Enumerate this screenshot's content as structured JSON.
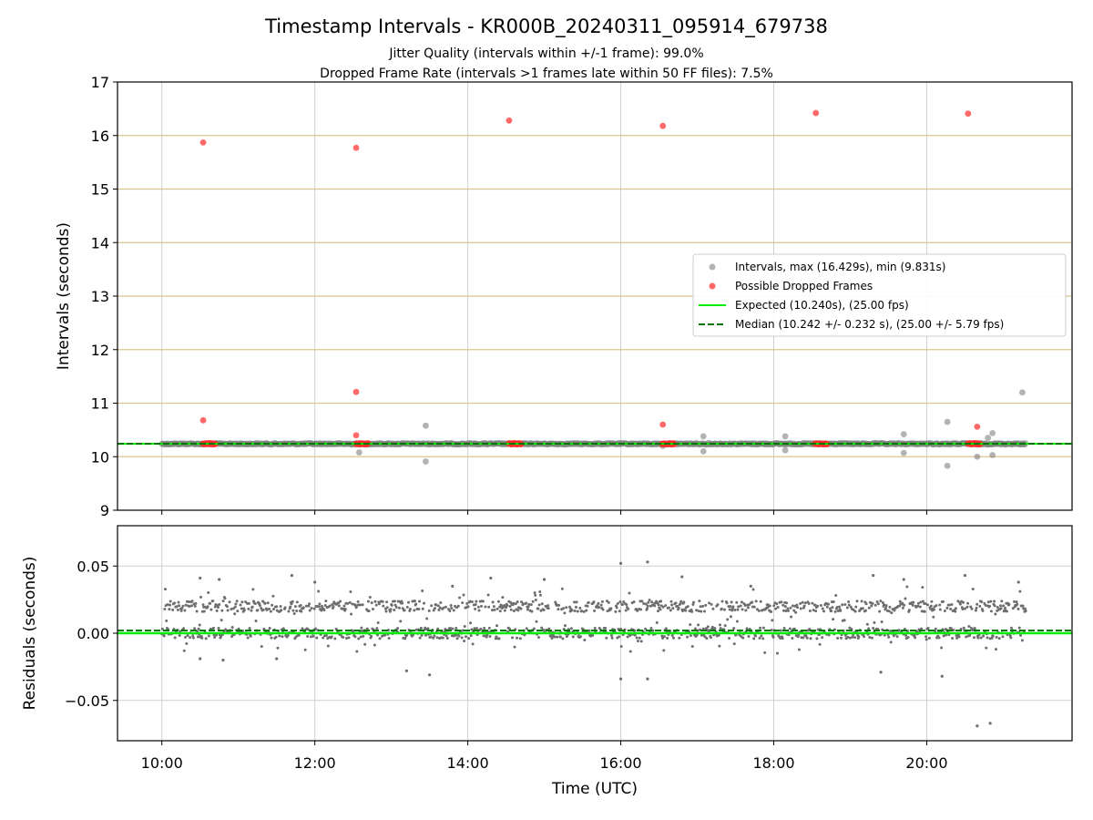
{
  "chart_data": {
    "type": "scatter",
    "title": "Timestamp Intervals - KR000B_20240311_095914_679738",
    "subtitle_lines": [
      "Jitter Quality (intervals within +/-1 frame): 99.0%",
      "Dropped Frame Rate (intervals >1 frames late within 50 FF files): 7.5%"
    ],
    "xlabel": "Time (UTC)",
    "x_tick_labels": [
      "10:00",
      "12:00",
      "14:00",
      "16:00",
      "18:00",
      "20:00"
    ],
    "x_ticks_hours": [
      10,
      12,
      14,
      16,
      18,
      20
    ],
    "xlim_hours": [
      9.42,
      21.9
    ],
    "grid": true,
    "panels": [
      {
        "name": "intervals",
        "ylabel": "Intervals (seconds)",
        "ylim": [
          9,
          17
        ],
        "y_ticks": [
          9,
          10,
          11,
          12,
          13,
          14,
          15,
          16,
          17
        ],
        "y_tick_labels": [
          "9",
          "10",
          "11",
          "12",
          "13",
          "14",
          "15",
          "16",
          "17"
        ],
        "horizontal_reference_lines": [
          10,
          11,
          12,
          13,
          14,
          15,
          16
        ],
        "series": [
          {
            "name": "Intervals, max (16.429s), min (9.831s)",
            "color": "#808080",
            "t_start_hours": 10.0,
            "t_end_hours": 21.3,
            "baseline_value": 10.24,
            "outliers": [
              [
                13.45,
                10.58
              ],
              [
                13.45,
                9.91
              ],
              [
                12.58,
                10.08
              ],
              [
                17.08,
                10.38
              ],
              [
                17.08,
                10.1
              ],
              [
                18.15,
                10.38
              ],
              [
                18.15,
                10.12
              ],
              [
                19.7,
                10.42
              ],
              [
                19.7,
                10.07
              ],
              [
                20.27,
                10.65
              ],
              [
                20.27,
                9.83
              ],
              [
                20.66,
                10.0
              ],
              [
                20.8,
                10.35
              ],
              [
                20.86,
                10.44
              ],
              [
                20.86,
                10.03
              ],
              [
                21.25,
                11.2
              ],
              [
                16.55,
                10.2
              ]
            ]
          },
          {
            "name": "Possible Dropped Frames",
            "color": "#ff2a2a",
            "points": [
              [
                10.54,
                15.87
              ],
              [
                10.54,
                10.68
              ],
              [
                12.54,
                15.77
              ],
              [
                12.54,
                11.21
              ],
              [
                12.54,
                10.4
              ],
              [
                14.54,
                16.28
              ],
              [
                16.55,
                16.18
              ],
              [
                16.55,
                10.6
              ],
              [
                18.55,
                16.42
              ],
              [
                20.54,
                16.41
              ],
              [
                20.66,
                10.56
              ]
            ],
            "clusters": [
              {
                "t_hours": [
                  10.54,
                  10.7
                ],
                "value": 10.24
              },
              {
                "t_hours": [
                  12.54,
                  12.7
                ],
                "value": 10.24
              },
              {
                "t_hours": [
                  14.54,
                  14.7
                ],
                "value": 10.24
              },
              {
                "t_hours": [
                  16.54,
                  16.7
                ],
                "value": 10.24
              },
              {
                "t_hours": [
                  18.54,
                  18.7
                ],
                "value": 10.24
              },
              {
                "t_hours": [
                  20.54,
                  20.7
                ],
                "value": 10.24
              }
            ]
          },
          {
            "name": "Expected (10.240s), (25.00 fps)",
            "color": "#00ee00",
            "style": "solid",
            "value": 10.24
          },
          {
            "name": "Median (10.242 +/- 0.232 s), (25.00 +/- 5.79 fps)",
            "color": "#007700",
            "style": "dashed",
            "value": 10.242
          }
        ]
      },
      {
        "name": "residuals",
        "ylabel": "Residuals (seconds)",
        "ylim": [
          -0.08,
          0.08
        ],
        "y_ticks": [
          -0.05,
          0.0,
          0.05
        ],
        "y_tick_labels": [
          "−0.05",
          "0.00",
          "0.05"
        ],
        "series": [
          {
            "name": "Residuals",
            "color": "#6e6e6e",
            "t_start_hours": 10.0,
            "t_end_hours": 21.3,
            "bands": [
              0.0,
              0.02
            ],
            "extra_points": [
              [
                10.5,
                -0.019
              ],
              [
                10.8,
                -0.02
              ],
              [
                11.5,
                -0.019
              ],
              [
                13.5,
                -0.031
              ],
              [
                13.2,
                -0.028
              ],
              [
                16.0,
                -0.034
              ],
              [
                16.35,
                -0.034
              ],
              [
                16.0,
                0.052
              ],
              [
                16.35,
                0.053
              ],
              [
                19.4,
                -0.029
              ],
              [
                20.2,
                -0.032
              ],
              [
                20.66,
                -0.069
              ],
              [
                20.83,
                -0.067
              ],
              [
                11.7,
                0.043
              ],
              [
                12.0,
                0.038
              ],
              [
                13.8,
                0.035
              ],
              [
                14.3,
                0.041
              ],
              [
                15.0,
                0.04
              ],
              [
                16.8,
                0.042
              ],
              [
                17.7,
                0.035
              ],
              [
                19.3,
                0.043
              ],
              [
                19.7,
                0.04
              ],
              [
                20.5,
                0.043
              ],
              [
                21.2,
                0.038
              ],
              [
                10.5,
                0.041
              ],
              [
                10.75,
                0.04
              ]
            ]
          },
          {
            "name": "Expected",
            "color": "#00ee00",
            "style": "solid",
            "value": 0.0
          },
          {
            "name": "Median",
            "color": "#007700",
            "style": "dashed",
            "value": 0.002
          }
        ]
      }
    ],
    "legend": {
      "placement": "center-right"
    }
  }
}
